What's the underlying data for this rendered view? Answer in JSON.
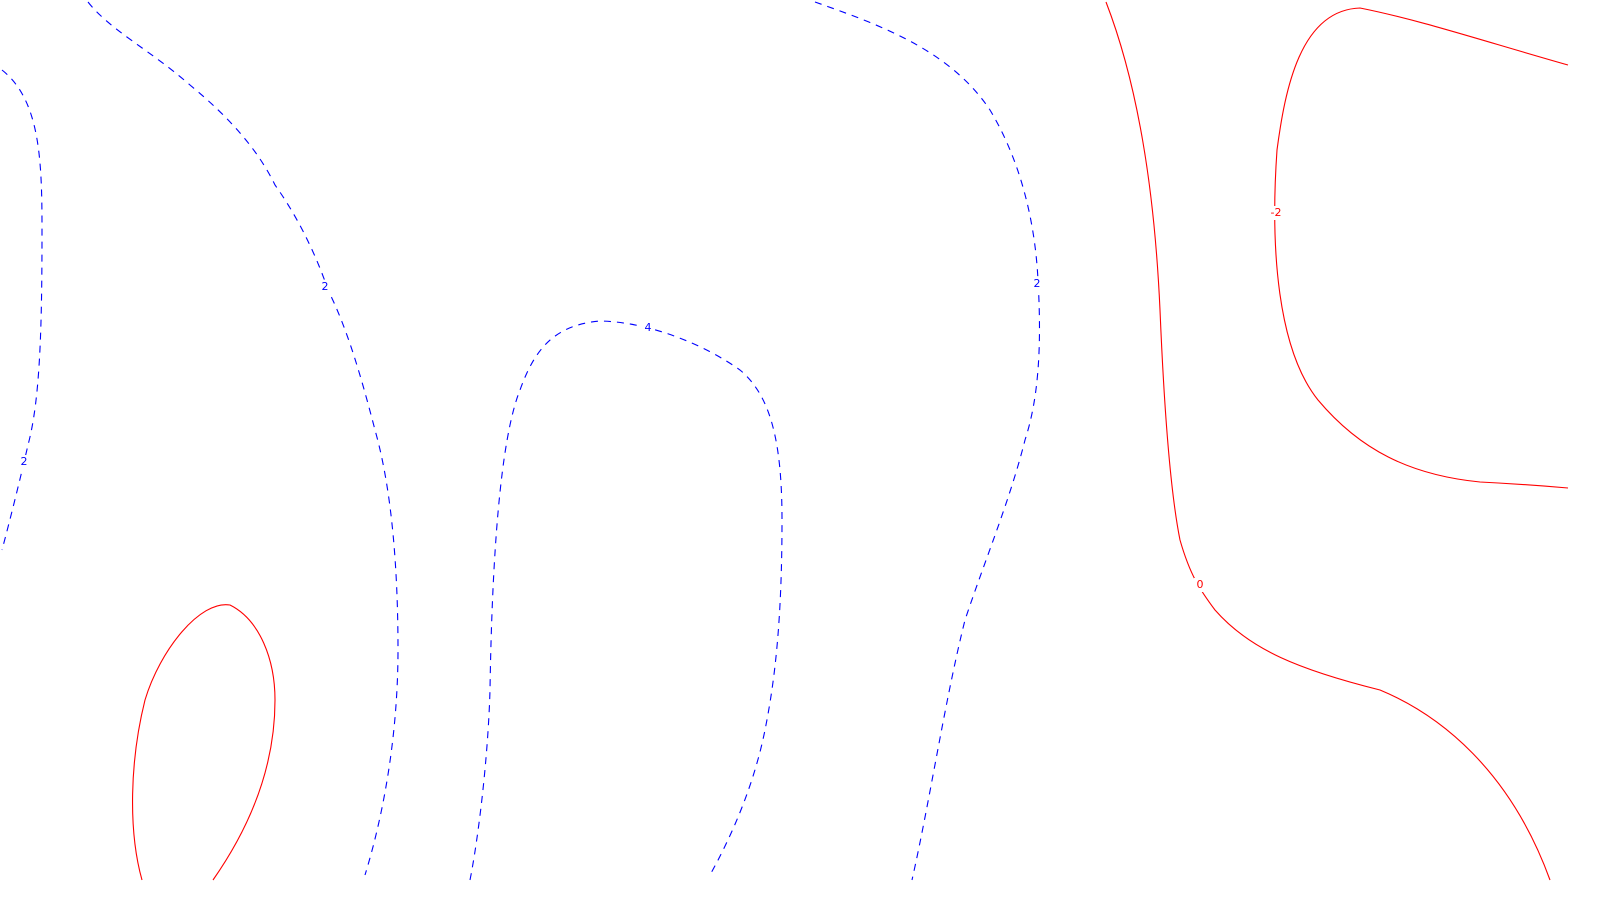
{
  "chart_data": {
    "type": "contour",
    "title": "",
    "xlabel": "",
    "ylabel": "",
    "grid": false,
    "legend": "none",
    "styles": {
      "positive": {
        "color": "#0000ff",
        "dash": "dashed"
      },
      "negative_zero": {
        "color": "#ff0000",
        "dash": "solid"
      }
    },
    "contours": [
      {
        "level": 2,
        "label": "2",
        "style": "positive"
      },
      {
        "level": 2,
        "label": "2",
        "style": "positive"
      },
      {
        "level": 4,
        "label": "4",
        "style": "positive"
      },
      {
        "level": 2,
        "label": "2",
        "style": "positive"
      },
      {
        "level": 0,
        "label": "0",
        "style": "negative_zero"
      },
      {
        "level": -2,
        "label": "-2",
        "style": "negative_zero"
      },
      {
        "level": 0,
        "label": "",
        "style": "negative_zero"
      }
    ]
  }
}
